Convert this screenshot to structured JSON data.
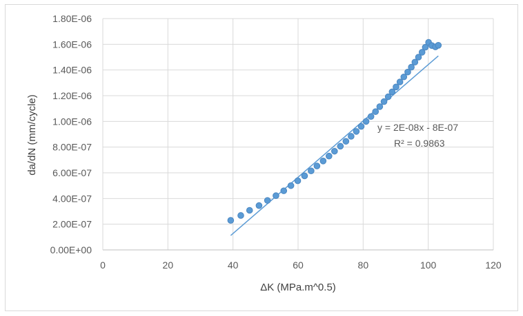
{
  "chart_data": {
    "type": "scatter",
    "title": "",
    "xlabel": "ΔK (MPa.m^0.5)",
    "ylabel": "da/dN (mm/cycle)",
    "xlim": [
      0,
      120
    ],
    "ylim": [
      0,
      1.8e-06
    ],
    "x_ticks": [
      "0",
      "20",
      "40",
      "60",
      "80",
      "100",
      "120"
    ],
    "y_ticks": [
      "0.00E+00",
      "2.00E-07",
      "4.00E-07",
      "6.00E-07",
      "8.00E-07",
      "1.00E-06",
      "1.20E-06",
      "1.40E-06",
      "1.60E-06",
      "1.80E-06"
    ],
    "grid": true,
    "series": [
      {
        "color": "#5b9bd5",
        "points": [
          [
            39.3,
            2.3e-07
          ],
          [
            42.4,
            2.68e-07
          ],
          [
            45.1,
            3.08e-07
          ],
          [
            48.0,
            3.45e-07
          ],
          [
            50.6,
            3.85e-07
          ],
          [
            53.2,
            4.22e-07
          ],
          [
            55.6,
            4.6e-07
          ],
          [
            57.8,
            5e-07
          ],
          [
            59.9,
            5.38e-07
          ],
          [
            62.0,
            5.76e-07
          ],
          [
            64.0,
            6.15e-07
          ],
          [
            65.8,
            6.53e-07
          ],
          [
            67.7,
            6.92e-07
          ],
          [
            69.5,
            7.3e-07
          ],
          [
            71.2,
            7.68e-07
          ],
          [
            73.0,
            8.07e-07
          ],
          [
            74.7,
            8.45e-07
          ],
          [
            76.3,
            8.84e-07
          ],
          [
            77.9,
            9.22e-07
          ],
          [
            79.4,
            9.61e-07
          ],
          [
            80.9,
            1e-06
          ],
          [
            82.4,
            1.038e-06
          ],
          [
            83.8,
            1.076e-06
          ],
          [
            85.1,
            1.115e-06
          ],
          [
            86.4,
            1.154e-06
          ],
          [
            87.7,
            1.192e-06
          ],
          [
            88.9,
            1.23e-06
          ],
          [
            90.1,
            1.268e-06
          ],
          [
            91.3,
            1.307e-06
          ],
          [
            92.5,
            1.346e-06
          ],
          [
            93.7,
            1.384e-06
          ],
          [
            94.8,
            1.422e-06
          ],
          [
            95.9,
            1.461e-06
          ],
          [
            97.0,
            1.5e-06
          ],
          [
            98.1,
            1.538e-06
          ],
          [
            99.1,
            1.577e-06
          ],
          [
            100.1,
            1.615e-06
          ],
          [
            101.1,
            1.59e-06
          ],
          [
            102.2,
            1.58e-06
          ],
          [
            103.1,
            1.592e-06
          ]
        ]
      }
    ],
    "trendline": {
      "color": "#5b9bd5",
      "from": [
        39.3,
        1.12e-07
      ],
      "to": [
        103.1,
        1.51e-06
      ]
    },
    "annotations": [
      "y = 2E-08x - 8E-07",
      "R² = 0.9863"
    ]
  }
}
